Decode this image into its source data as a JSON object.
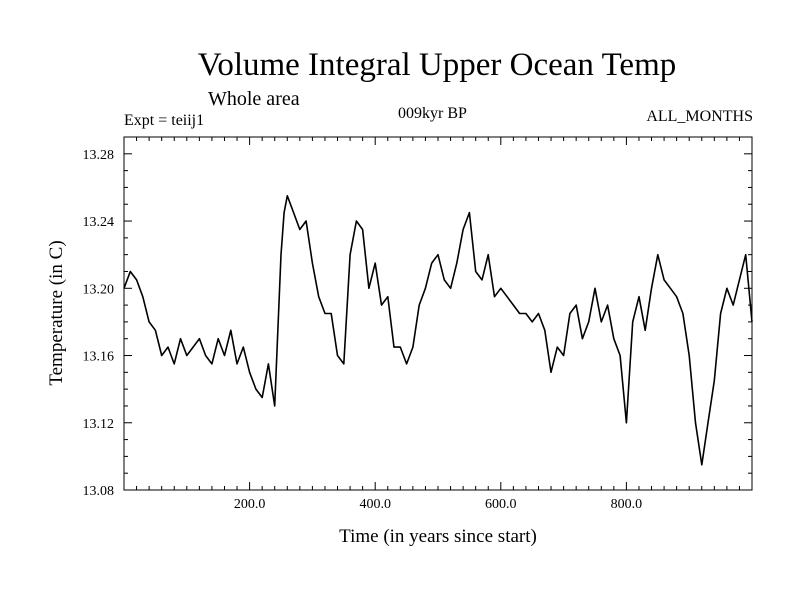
{
  "header": {
    "title": "Volume Integral Upper Ocean Temp",
    "subtitle": "Whole area",
    "experiment": "Expt = teiij1",
    "period": "009kyr BP",
    "months": "ALL_MONTHS"
  },
  "chart_data": {
    "type": "line",
    "title": "Volume Integral Upper Ocean Temp",
    "subtitle": "Whole area",
    "xlabel": "Time (in years since start)",
    "ylabel": "Temperature (in C)",
    "xlim": [
      0,
      1000
    ],
    "ylim": [
      13.08,
      13.29
    ],
    "x_ticks": [
      200,
      400,
      600,
      800
    ],
    "x_tick_labels": [
      "200.0",
      "400.0",
      "600.0",
      "800.0"
    ],
    "y_ticks": [
      13.08,
      13.12,
      13.16,
      13.2,
      13.24,
      13.28
    ],
    "y_tick_labels": [
      "13.08",
      "13.12",
      "13.16",
      "13.20",
      "13.24",
      "13.28"
    ],
    "grid": false,
    "series": [
      {
        "x": [
          0,
          10,
          20,
          30,
          40,
          50,
          60,
          70,
          80,
          90,
          100,
          110,
          120,
          130,
          140,
          150,
          160,
          170,
          180,
          190,
          200,
          210,
          220,
          230,
          240,
          250,
          255,
          260,
          270,
          280,
          290,
          300,
          310,
          320,
          330,
          340,
          350,
          360,
          370,
          380,
          390,
          400,
          410,
          420,
          430,
          440,
          450,
          460,
          470,
          480,
          490,
          500,
          510,
          520,
          530,
          540,
          550,
          560,
          570,
          580,
          590,
          600,
          610,
          620,
          630,
          640,
          650,
          660,
          670,
          680,
          690,
          700,
          710,
          720,
          730,
          740,
          750,
          760,
          770,
          780,
          790,
          800,
          810,
          820,
          830,
          840,
          850,
          860,
          870,
          880,
          890,
          900,
          910,
          920,
          930,
          940,
          950,
          960,
          970,
          980,
          990,
          1000
        ],
        "values": [
          13.2,
          13.21,
          13.205,
          13.195,
          13.18,
          13.175,
          13.16,
          13.165,
          13.155,
          13.17,
          13.16,
          13.165,
          13.17,
          13.16,
          13.155,
          13.17,
          13.16,
          13.175,
          13.155,
          13.165,
          13.15,
          13.14,
          13.135,
          13.155,
          13.13,
          13.22,
          13.245,
          13.255,
          13.245,
          13.235,
          13.24,
          13.215,
          13.195,
          13.185,
          13.185,
          13.16,
          13.155,
          13.22,
          13.24,
          13.235,
          13.2,
          13.215,
          13.19,
          13.195,
          13.165,
          13.165,
          13.155,
          13.165,
          13.19,
          13.2,
          13.215,
          13.22,
          13.205,
          13.2,
          13.215,
          13.235,
          13.245,
          13.21,
          13.205,
          13.22,
          13.195,
          13.2,
          13.195,
          13.19,
          13.185,
          13.185,
          13.18,
          13.185,
          13.175,
          13.15,
          13.165,
          13.16,
          13.185,
          13.19,
          13.17,
          13.18,
          13.2,
          13.18,
          13.19,
          13.17,
          13.16,
          13.12,
          13.18,
          13.195,
          13.175,
          13.2,
          13.22,
          13.205,
          13.2,
          13.195,
          13.185,
          13.16,
          13.12,
          13.095,
          13.12,
          13.145,
          13.185,
          13.2,
          13.19,
          13.205,
          13.22,
          13.18
        ]
      }
    ]
  }
}
